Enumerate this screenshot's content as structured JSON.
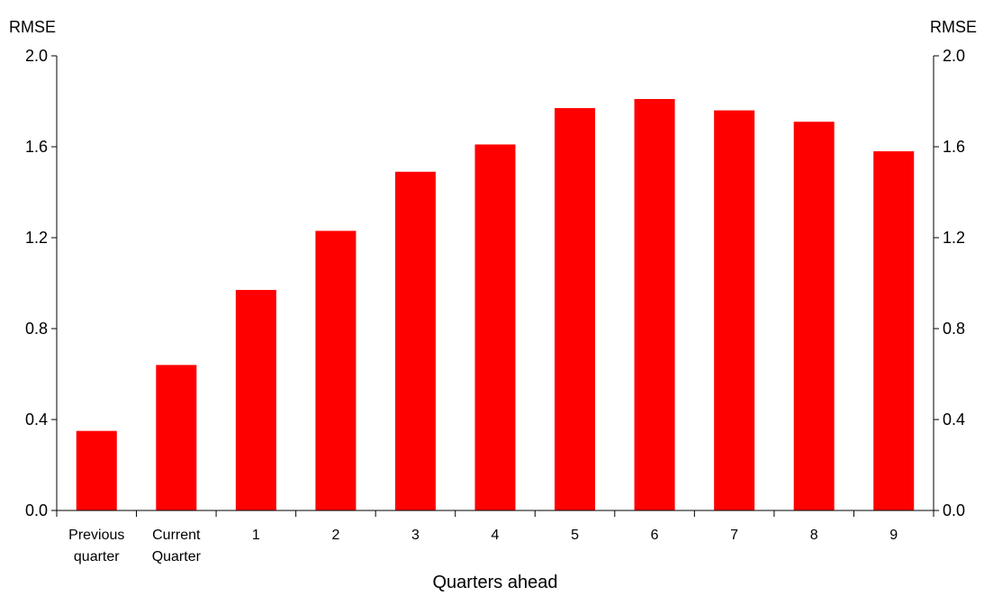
{
  "chart_data": {
    "type": "bar",
    "categories": [
      [
        "Previous",
        "quarter"
      ],
      [
        "Current",
        "Quarter"
      ],
      [
        "1"
      ],
      [
        "2"
      ],
      [
        "3"
      ],
      [
        "4"
      ],
      [
        "5"
      ],
      [
        "6"
      ],
      [
        "7"
      ],
      [
        "8"
      ],
      [
        "9"
      ]
    ],
    "values": [
      0.35,
      0.64,
      0.97,
      1.23,
      1.49,
      1.61,
      1.77,
      1.81,
      1.76,
      1.71,
      1.58
    ],
    "xlabel": "Quarters ahead",
    "ylabel_left": "RMSE",
    "ylabel_right": "RMSE",
    "ylim": [
      0,
      2.0
    ],
    "yticks": [
      "0.0",
      "0.4",
      "0.8",
      "1.2",
      "1.6",
      "2.0"
    ],
    "grid": false,
    "bar_color": "#ff0000"
  }
}
